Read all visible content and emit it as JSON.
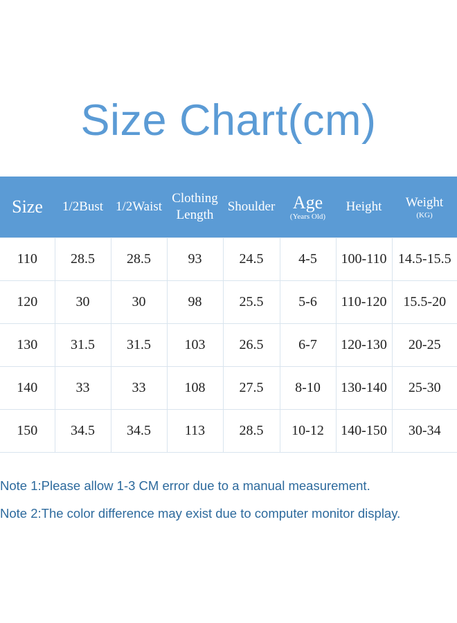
{
  "title": "Size Chart(cm)",
  "headers": [
    {
      "label": "Size",
      "sub": ""
    },
    {
      "label": "1/2Bust",
      "sub": ""
    },
    {
      "label": "1/2Waist",
      "sub": ""
    },
    {
      "label": "Clothing Length",
      "sub": ""
    },
    {
      "label": "Shoulder",
      "sub": ""
    },
    {
      "label": "Age",
      "sub": "(Years Old)"
    },
    {
      "label": "Height",
      "sub": ""
    },
    {
      "label": "Weight",
      "sub": "(KG)"
    }
  ],
  "rows": [
    [
      "110",
      "28.5",
      "28.5",
      "93",
      "24.5",
      "4-5",
      "100-110",
      "14.5-15.5"
    ],
    [
      "120",
      "30",
      "30",
      "98",
      "25.5",
      "5-6",
      "110-120",
      "15.5-20"
    ],
    [
      "130",
      "31.5",
      "31.5",
      "103",
      "26.5",
      "6-7",
      "120-130",
      "20-25"
    ],
    [
      "140",
      "33",
      "33",
      "108",
      "27.5",
      "8-10",
      "130-140",
      "25-30"
    ],
    [
      "150",
      "34.5",
      "34.5",
      "113",
      "28.5",
      "10-12",
      "140-150",
      "30-34"
    ]
  ],
  "notes": [
    "Note 1:Please allow 1-3 CM error due to a manual measurement.",
    "Note 2:The color difference may exist due to computer monitor display."
  ],
  "colors": {
    "accent": "#5b9bd5",
    "note_text": "#2d6a9d"
  }
}
